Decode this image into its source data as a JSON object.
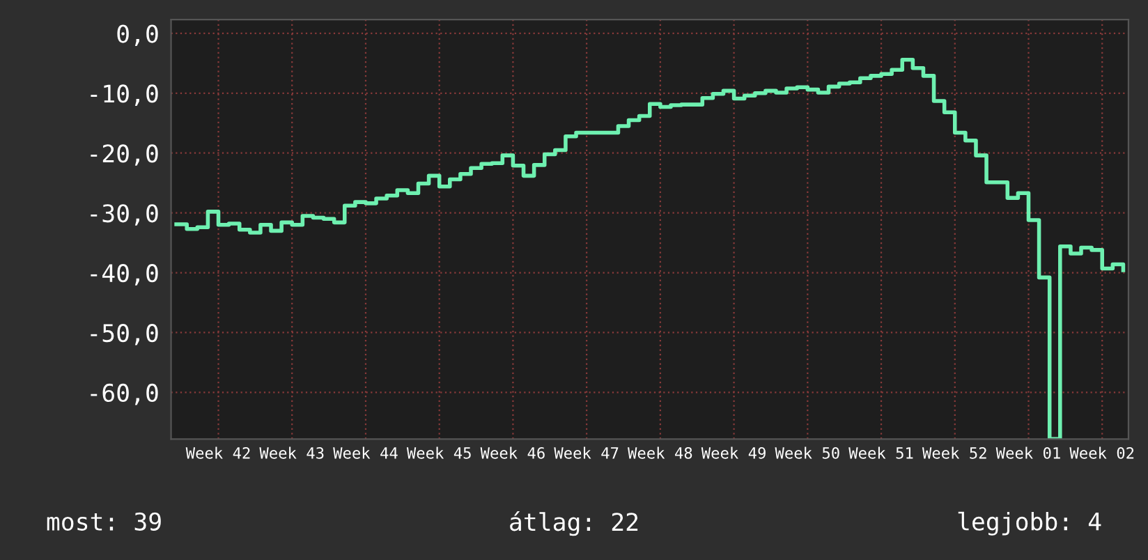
{
  "chart_data": {
    "type": "step",
    "categories": [
      null,
      null,
      null,
      null,
      "Week 42",
      null,
      null,
      null,
      null,
      null,
      null,
      "Week 43",
      null,
      null,
      null,
      null,
      null,
      null,
      "Week 44",
      null,
      null,
      null,
      null,
      null,
      null,
      "Week 45",
      null,
      null,
      null,
      null,
      null,
      null,
      "Week 46",
      null,
      null,
      null,
      null,
      null,
      null,
      "Week 47",
      null,
      null,
      null,
      null,
      null,
      null,
      "Week 48",
      null,
      null,
      null,
      null,
      null,
      null,
      "Week 49",
      null,
      null,
      null,
      null,
      null,
      null,
      "Week 50",
      null,
      null,
      null,
      null,
      null,
      null,
      "Week 51",
      null,
      null,
      null,
      null,
      null,
      null,
      "Week 52",
      null,
      null,
      null,
      null,
      null,
      null,
      "Week 01",
      null,
      null,
      null,
      null,
      null,
      null,
      "Week 02",
      null,
      null
    ],
    "series": [
      {
        "color": "#6ef0b0",
        "values": [
          -31.9,
          -32.7,
          -32.4,
          -29.8,
          -32,
          -31.8,
          -32.8,
          -33.3,
          -32,
          -33,
          -31.6,
          -32,
          -30.5,
          -30.8,
          -31,
          -31.6,
          -28.8,
          -28.2,
          -28.4,
          -27.6,
          -27.1,
          -26.2,
          -26.7,
          -25.1,
          -23.8,
          -25.6,
          -24.4,
          -23.5,
          -22.5,
          -21.8,
          -21.7,
          -20.4,
          -22.1,
          -23.8,
          -22,
          -20.2,
          -19.5,
          -17.2,
          -16.6,
          -16.6,
          -16.6,
          -16.6,
          -15.5,
          -14.5,
          -13.8,
          -11.8,
          -12.3,
          -12.0,
          -11.9,
          -11.9,
          -10.8,
          -10.1,
          -9.6,
          -10.9,
          -10.4,
          -10.0,
          -9.6,
          -9.9,
          -9.2,
          -9.0,
          -9.4,
          -9.9,
          -8.9,
          -8.4,
          -8.2,
          -7.5,
          -7.1,
          -6.8,
          -6.1,
          -4.4,
          -5.8,
          -7.1,
          -11.3,
          -13.2,
          -16.6,
          -17.9,
          -20.4,
          -24.9,
          -24.9,
          -27.5,
          -26.7,
          -31.2,
          -40.8,
          -67.8,
          -35.6,
          -36.8,
          -35.8,
          -36.2,
          -39.3,
          -38.6,
          -39.6
        ]
      }
    ],
    "ylim": [
      -67.8,
      2.3
    ],
    "yticks": [
      {
        "value": 0,
        "label": "0,0"
      },
      {
        "value": -10,
        "label": "-10,0"
      },
      {
        "value": -20,
        "label": "-20,0"
      },
      {
        "value": -30,
        "label": "-30,0"
      },
      {
        "value": -40,
        "label": "-40,0"
      },
      {
        "value": -50,
        "label": "-50,0"
      },
      {
        "value": -60,
        "label": "-60,0"
      }
    ],
    "grid": true,
    "annotations": [
      "most: 39",
      "átlag: 22",
      "legjobb: 4"
    ]
  }
}
